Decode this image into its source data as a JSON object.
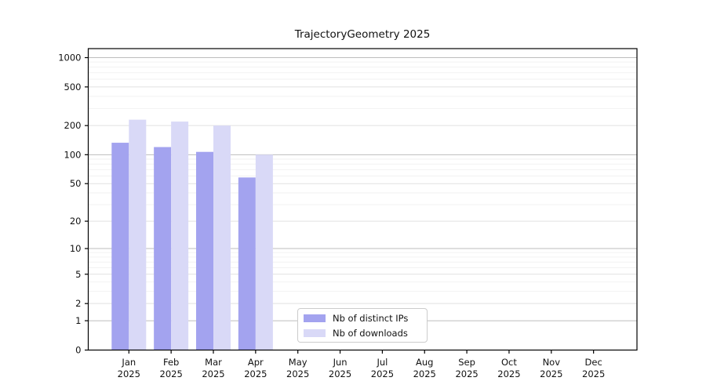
{
  "title": "TrajectoryGeometry 2025",
  "chart_data": {
    "type": "bar",
    "title": "TrajectoryGeometry 2025",
    "categories": [
      "Jan",
      "Feb",
      "Mar",
      "Apr",
      "May",
      "Jun",
      "Jul",
      "Aug",
      "Sep",
      "Oct",
      "Nov",
      "Dec"
    ],
    "year": "2025",
    "series": [
      {
        "name": "Nb of distinct IPs",
        "color": "#a3a3ef",
        "values": [
          133,
          120,
          107,
          58,
          0,
          0,
          0,
          0,
          0,
          0,
          0,
          0
        ]
      },
      {
        "name": "Nb of downloads",
        "color": "#d9d9f7",
        "values": [
          230,
          220,
          200,
          100,
          0,
          0,
          0,
          0,
          0,
          0,
          0,
          0
        ]
      }
    ],
    "y_ticks": [
      0,
      1,
      2,
      5,
      10,
      20,
      50,
      100,
      200,
      500,
      1000
    ],
    "y_scale": "log10(1+y)",
    "ylim": [
      0,
      1240
    ],
    "xlabel": "",
    "ylabel": "",
    "grid": "horizontal major + log minor gridlines",
    "legend_position": "inside lower-center"
  },
  "legend": {
    "items": [
      {
        "label": "Nb of distinct IPs",
        "color": "#a3a3ef"
      },
      {
        "label": "Nb of downloads",
        "color": "#d9d9f7"
      }
    ]
  }
}
